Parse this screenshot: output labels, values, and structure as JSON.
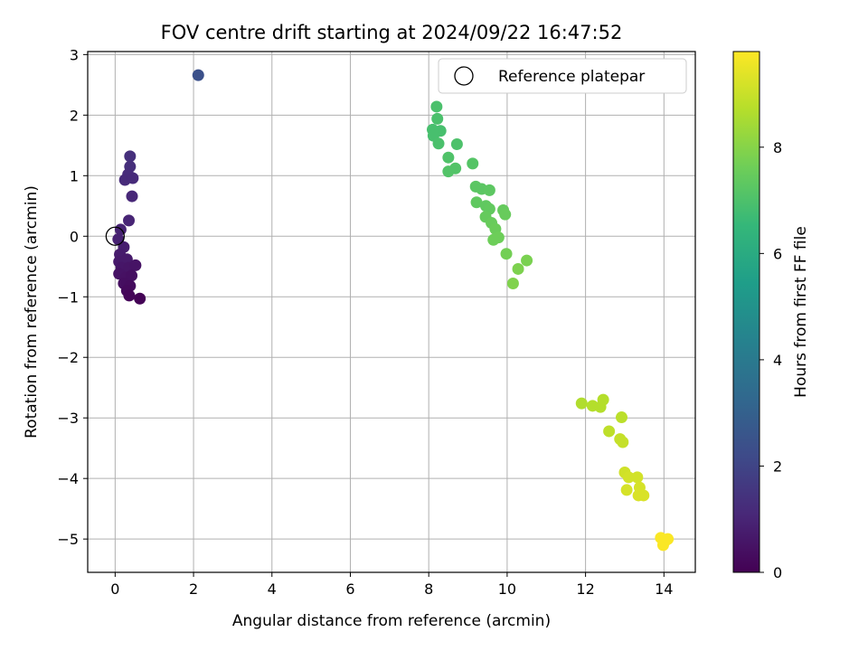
{
  "chart_data": {
    "type": "scatter",
    "title": "FOV centre drift starting at 2024/09/22 16:47:52",
    "xlabel": "Angular distance from reference (arcmin)",
    "ylabel": "Rotation from reference (arcmin)",
    "xlim": [
      -0.7,
      14.8
    ],
    "ylim": [
      -5.55,
      3.05
    ],
    "xticks": [
      0,
      2,
      4,
      6,
      8,
      10,
      12,
      14
    ],
    "yticks": [
      3,
      2,
      1,
      0,
      -1,
      -2,
      -3,
      -4,
      -5
    ],
    "xtick_labels": [
      "0",
      "2",
      "4",
      "6",
      "8",
      "10",
      "12",
      "14"
    ],
    "ytick_labels": [
      "3",
      "2",
      "1",
      "0",
      "−1",
      "−2",
      "−3",
      "−4",
      "−5"
    ],
    "grid": true,
    "legend": {
      "placement": "top-right",
      "label": "Reference platepar"
    },
    "reference_point": {
      "x": 0,
      "y": 0
    },
    "colorbar": {
      "label": "Hours from first FF file",
      "range": [
        0,
        9.8
      ],
      "ticks": [
        0,
        2,
        4,
        6,
        8
      ],
      "tick_labels": [
        "0",
        "2",
        "4",
        "6",
        "8"
      ],
      "colormap": "viridis"
    },
    "points": [
      {
        "x": 0.38,
        "y": 1.32,
        "hours": 1.35
      },
      {
        "x": 0.38,
        "y": 1.15,
        "hours": 1.3
      },
      {
        "x": 0.33,
        "y": 1.02,
        "hours": 1.25
      },
      {
        "x": 0.25,
        "y": 0.93,
        "hours": 1.2
      },
      {
        "x": 0.45,
        "y": 0.96,
        "hours": 1.2
      },
      {
        "x": 0.43,
        "y": 0.66,
        "hours": 1.1
      },
      {
        "x": 0.35,
        "y": 0.26,
        "hours": 1.0
      },
      {
        "x": 0.14,
        "y": 0.11,
        "hours": 0.95
      },
      {
        "x": 0.08,
        "y": -0.05,
        "hours": 0.9
      },
      {
        "x": 0.22,
        "y": -0.18,
        "hours": 0.8
      },
      {
        "x": 0.12,
        "y": -0.3,
        "hours": 0.75
      },
      {
        "x": 0.1,
        "y": -0.42,
        "hours": 0.7
      },
      {
        "x": 0.3,
        "y": -0.38,
        "hours": 0.7
      },
      {
        "x": 0.16,
        "y": -0.52,
        "hours": 0.6
      },
      {
        "x": 0.35,
        "y": -0.52,
        "hours": 0.55
      },
      {
        "x": 0.52,
        "y": -0.48,
        "hours": 0.5
      },
      {
        "x": 0.1,
        "y": -0.62,
        "hours": 0.5
      },
      {
        "x": 0.28,
        "y": -0.68,
        "hours": 0.45
      },
      {
        "x": 0.42,
        "y": -0.65,
        "hours": 0.4
      },
      {
        "x": 0.22,
        "y": -0.78,
        "hours": 0.35
      },
      {
        "x": 0.38,
        "y": -0.82,
        "hours": 0.3
      },
      {
        "x": 0.3,
        "y": -0.9,
        "hours": 0.25
      },
      {
        "x": 0.36,
        "y": -0.98,
        "hours": 0.15
      },
      {
        "x": 0.63,
        "y": -1.03,
        "hours": 0.05
      },
      {
        "x": 2.12,
        "y": 2.66,
        "hours": 2.4
      },
      {
        "x": 8.2,
        "y": 2.14,
        "hours": 6.95
      },
      {
        "x": 8.22,
        "y": 1.94,
        "hours": 6.95
      },
      {
        "x": 8.1,
        "y": 1.76,
        "hours": 6.9
      },
      {
        "x": 8.3,
        "y": 1.74,
        "hours": 6.9
      },
      {
        "x": 8.12,
        "y": 1.66,
        "hours": 6.9
      },
      {
        "x": 8.25,
        "y": 1.53,
        "hours": 6.95
      },
      {
        "x": 8.72,
        "y": 1.52,
        "hours": 7.0
      },
      {
        "x": 8.5,
        "y": 1.3,
        "hours": 7.05
      },
      {
        "x": 8.68,
        "y": 1.12,
        "hours": 7.1
      },
      {
        "x": 8.5,
        "y": 1.07,
        "hours": 7.1
      },
      {
        "x": 9.12,
        "y": 1.2,
        "hours": 7.15
      },
      {
        "x": 9.2,
        "y": 0.82,
        "hours": 7.25
      },
      {
        "x": 9.35,
        "y": 0.78,
        "hours": 7.25
      },
      {
        "x": 9.55,
        "y": 0.76,
        "hours": 7.3
      },
      {
        "x": 9.22,
        "y": 0.56,
        "hours": 7.35
      },
      {
        "x": 9.46,
        "y": 0.5,
        "hours": 7.35
      },
      {
        "x": 9.55,
        "y": 0.45,
        "hours": 7.4
      },
      {
        "x": 9.45,
        "y": 0.32,
        "hours": 7.45
      },
      {
        "x": 9.6,
        "y": 0.22,
        "hours": 7.5
      },
      {
        "x": 9.9,
        "y": 0.43,
        "hours": 7.45
      },
      {
        "x": 9.95,
        "y": 0.36,
        "hours": 7.5
      },
      {
        "x": 9.7,
        "y": 0.12,
        "hours": 7.55
      },
      {
        "x": 9.78,
        "y": -0.02,
        "hours": 7.6
      },
      {
        "x": 9.65,
        "y": -0.06,
        "hours": 7.6
      },
      {
        "x": 9.98,
        "y": -0.29,
        "hours": 7.7
      },
      {
        "x": 10.5,
        "y": -0.4,
        "hours": 7.8
      },
      {
        "x": 10.28,
        "y": -0.54,
        "hours": 7.85
      },
      {
        "x": 10.15,
        "y": -0.78,
        "hours": 7.9
      },
      {
        "x": 11.9,
        "y": -2.76,
        "hours": 8.65
      },
      {
        "x": 12.18,
        "y": -2.8,
        "hours": 8.7
      },
      {
        "x": 12.38,
        "y": -2.82,
        "hours": 8.7
      },
      {
        "x": 12.45,
        "y": -2.7,
        "hours": 8.7
      },
      {
        "x": 12.6,
        "y": -3.22,
        "hours": 8.85
      },
      {
        "x": 12.92,
        "y": -2.99,
        "hours": 8.8
      },
      {
        "x": 12.88,
        "y": -3.35,
        "hours": 8.95
      },
      {
        "x": 12.95,
        "y": -3.4,
        "hours": 8.95
      },
      {
        "x": 13.0,
        "y": -3.9,
        "hours": 9.1
      },
      {
        "x": 13.1,
        "y": -3.98,
        "hours": 9.15
      },
      {
        "x": 13.05,
        "y": -4.19,
        "hours": 9.2
      },
      {
        "x": 13.32,
        "y": -3.98,
        "hours": 9.15
      },
      {
        "x": 13.38,
        "y": -4.15,
        "hours": 9.2
      },
      {
        "x": 13.35,
        "y": -4.28,
        "hours": 9.25
      },
      {
        "x": 13.48,
        "y": -4.28,
        "hours": 9.25
      },
      {
        "x": 14.05,
        "y": -5.02,
        "hours": 9.75
      },
      {
        "x": 13.92,
        "y": -4.98,
        "hours": 9.75
      },
      {
        "x": 13.98,
        "y": -5.1,
        "hours": 9.75
      },
      {
        "x": 14.1,
        "y": -5.0,
        "hours": 9.75
      }
    ]
  }
}
